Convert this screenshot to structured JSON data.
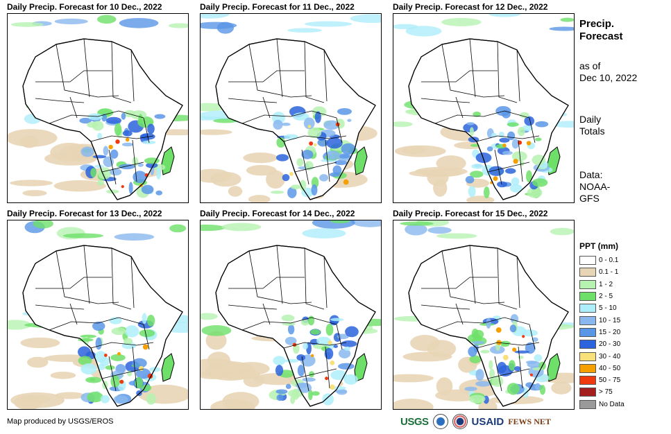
{
  "panels": [
    {
      "title": "Daily Precip. Forecast for 10 Dec., 2022"
    },
    {
      "title": "Daily Precip. Forecast for 11 Dec., 2022"
    },
    {
      "title": "Daily Precip. Forecast for 12 Dec., 2022"
    },
    {
      "title": "Daily Precip. Forecast for 13 Dec., 2022"
    },
    {
      "title": "Daily Precip. Forecast for 14 Dec., 2022"
    },
    {
      "title": "Daily Precip. Forecast for 15 Dec., 2022"
    }
  ],
  "side": {
    "title": "Precip. Forecast",
    "as_of_label": "as of",
    "as_of_date": "Dec 10, 2022",
    "totals": "Daily Totals",
    "data_label": "Data:",
    "data_source": "NOAA-GFS"
  },
  "legend": {
    "title": "PPT (mm)",
    "items": [
      {
        "label": "0 - 0.1",
        "color": "#ffffff"
      },
      {
        "label": "0.1 - 1",
        "color": "#e8d5b5"
      },
      {
        "label": "1 - 2",
        "color": "#b6f2b0"
      },
      {
        "label": "2 - 5",
        "color": "#6ee06a"
      },
      {
        "label": "5 - 10",
        "color": "#aeeefa"
      },
      {
        "label": "10 - 15",
        "color": "#8ab8ee"
      },
      {
        "label": "15 - 20",
        "color": "#5a96e6"
      },
      {
        "label": "20 - 30",
        "color": "#2b64dc"
      },
      {
        "label": "30 - 40",
        "color": "#f8e07a"
      },
      {
        "label": "40 - 50",
        "color": "#f5a000"
      },
      {
        "label": "50 - 75",
        "color": "#ee3a0e"
      },
      {
        "label": "> 75",
        "color": "#a51e1e"
      },
      {
        "label": "No Data",
        "color": "#9a9a9a"
      }
    ]
  },
  "credit": "Map produced by USGS/EROS",
  "logos": {
    "usgs": "USGS",
    "usaid": "USAID",
    "fews": "FEWS NET"
  }
}
